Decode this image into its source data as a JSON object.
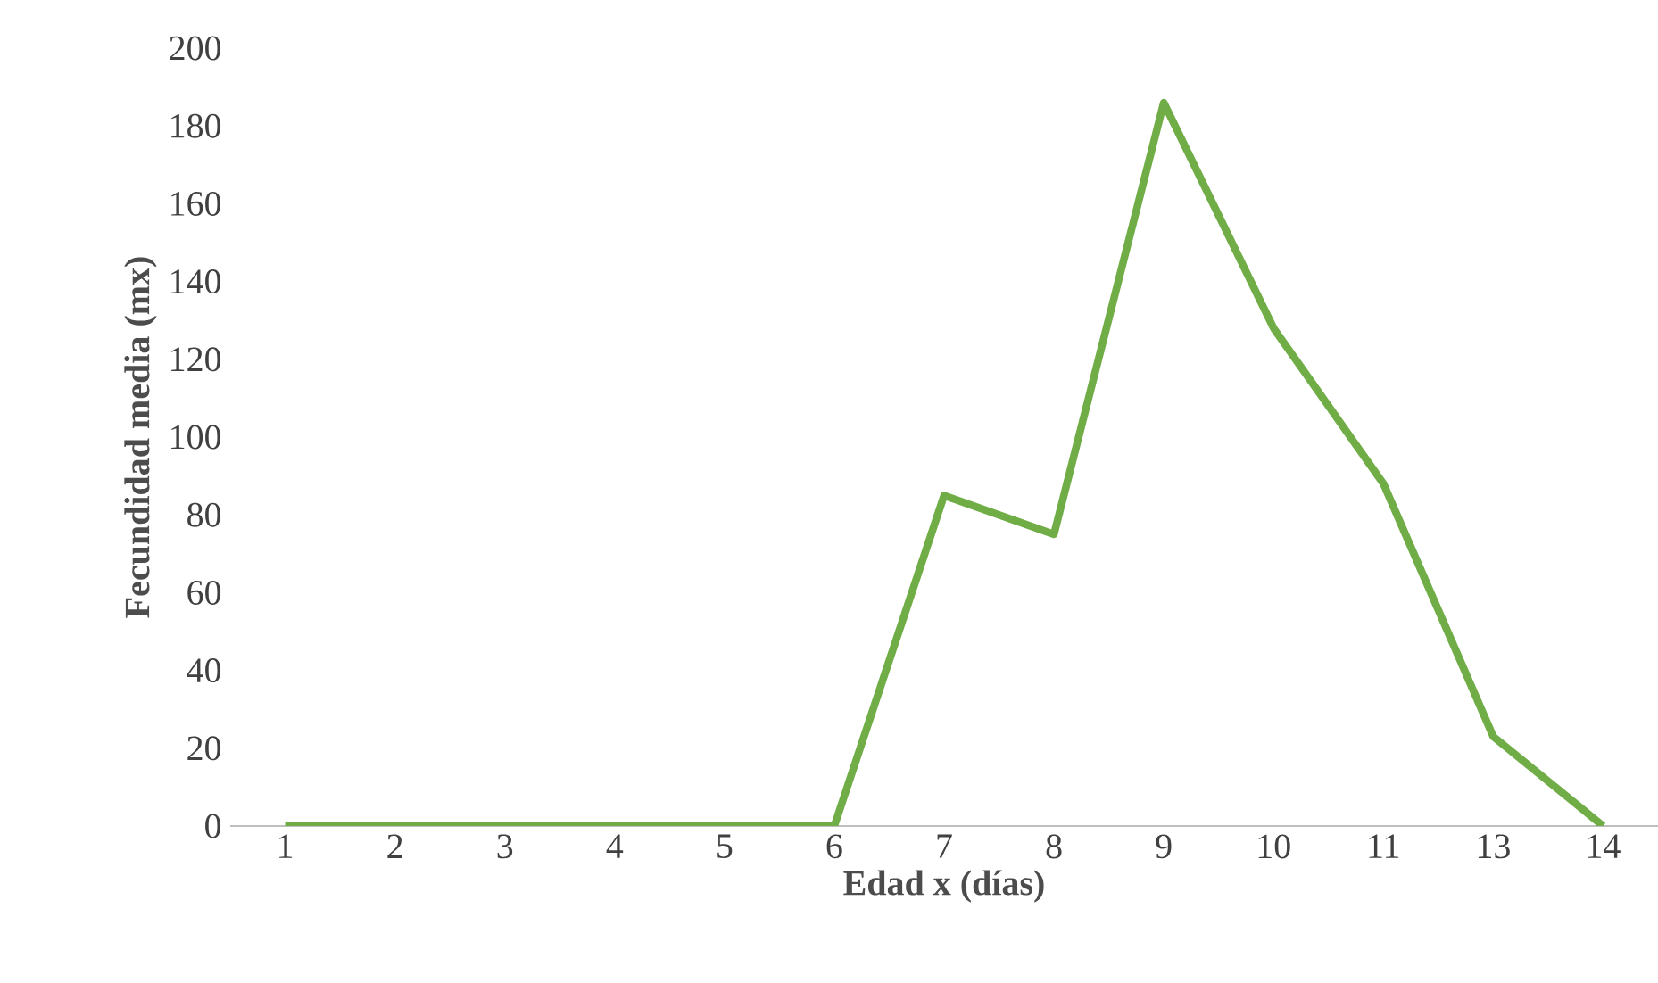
{
  "chart_data": {
    "type": "line",
    "categories": [
      "1",
      "2",
      "3",
      "4",
      "5",
      "6",
      "7",
      "8",
      "9",
      "10",
      "11",
      "13",
      "14"
    ],
    "values": [
      0,
      0,
      0,
      0,
      0,
      0,
      85,
      75,
      186,
      128,
      88,
      23,
      0
    ],
    "color": "#70ad47",
    "xlabel": "Edad x (días)",
    "ylabel": "Fecundidad media (mx)",
    "ylim": [
      0,
      200
    ],
    "yticks": [
      0,
      20,
      40,
      60,
      80,
      100,
      120,
      140,
      160,
      180,
      200
    ],
    "marker": "none",
    "line_style": "solid"
  }
}
